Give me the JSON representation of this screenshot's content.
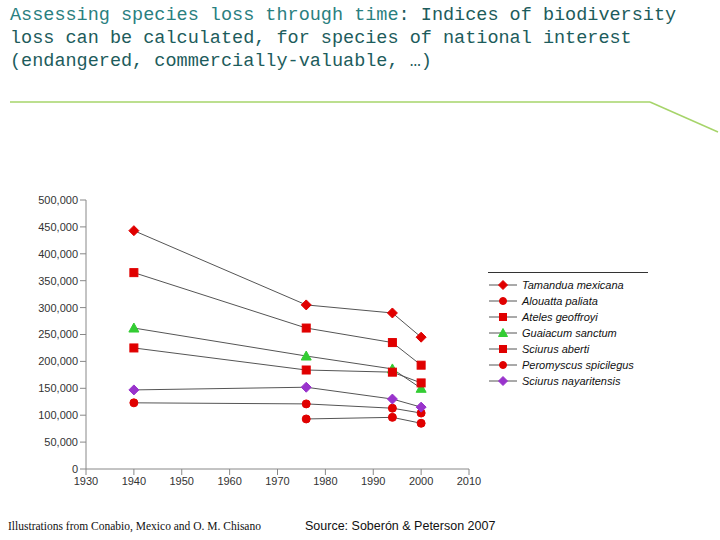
{
  "chart_data": {
    "type": "line",
    "title": "Assessing species loss through time",
    "subtitle": ": Indices of biodiversity loss can be calculated, for species of national interest (endangered, commercially-valuable, …)",
    "annotations": [
      "Illustrations from Conabio, Mexico and O. M. Chisano",
      "Source: Soberón & Peterson 2007"
    ],
    "x": [
      1940,
      1976,
      1994,
      2000
    ],
    "xlim": [
      1930,
      2010
    ],
    "xticks": [
      1930,
      1940,
      1950,
      1960,
      1970,
      1980,
      1990,
      2000,
      2010
    ],
    "ylim": [
      0,
      500000
    ],
    "yticks": [
      0,
      {
        "value": 50000,
        "label": "50,000"
      },
      {
        "value": 100000,
        "label": "100,000"
      },
      {
        "value": 150000,
        "label": "150,000"
      },
      {
        "value": 200000,
        "label": "200,000"
      },
      {
        "value": 250000,
        "label": "250,000"
      },
      {
        "value": 300000,
        "label": "300,000"
      },
      {
        "value": 350000,
        "label": "350,000"
      },
      {
        "value": 400000,
        "label": "400,000"
      },
      {
        "value": 450000,
        "label": "450,000"
      },
      {
        "value": 500000,
        "label": "500,000"
      }
    ],
    "grid": false,
    "legend": "right",
    "series": [
      {
        "name": "Tamandua mexicana",
        "color": "#e00000",
        "marker": "diamond",
        "values": [
          443000,
          305000,
          290000,
          245000
        ]
      },
      {
        "name": "Alouatta paliata",
        "color": "#e00000",
        "marker": "circle",
        "values": [
          123000,
          121000,
          113000,
          104000
        ]
      },
      {
        "name": "Ateles geoffroyi",
        "color": "#e00000",
        "marker": "square",
        "values": [
          365000,
          262000,
          235000,
          193000
        ]
      },
      {
        "name": "Guaiacum sanctum",
        "color": "#33cc33",
        "marker": "triangle",
        "values": [
          262000,
          210000,
          186000,
          150000
        ]
      },
      {
        "name": "Sciurus aberti",
        "color": "#e00000",
        "marker": "square",
        "values": [
          225000,
          184000,
          180000,
          160000
        ]
      },
      {
        "name": "Peromyscus spicilegus",
        "color": "#e00000",
        "marker": "circle",
        "values": [
          null,
          93000,
          96000,
          85000
        ]
      },
      {
        "name": "Sciurus nayaritensis",
        "color": "#9933cc",
        "marker": "diamond",
        "values": [
          147000,
          152000,
          130000,
          115000
        ]
      }
    ]
  }
}
